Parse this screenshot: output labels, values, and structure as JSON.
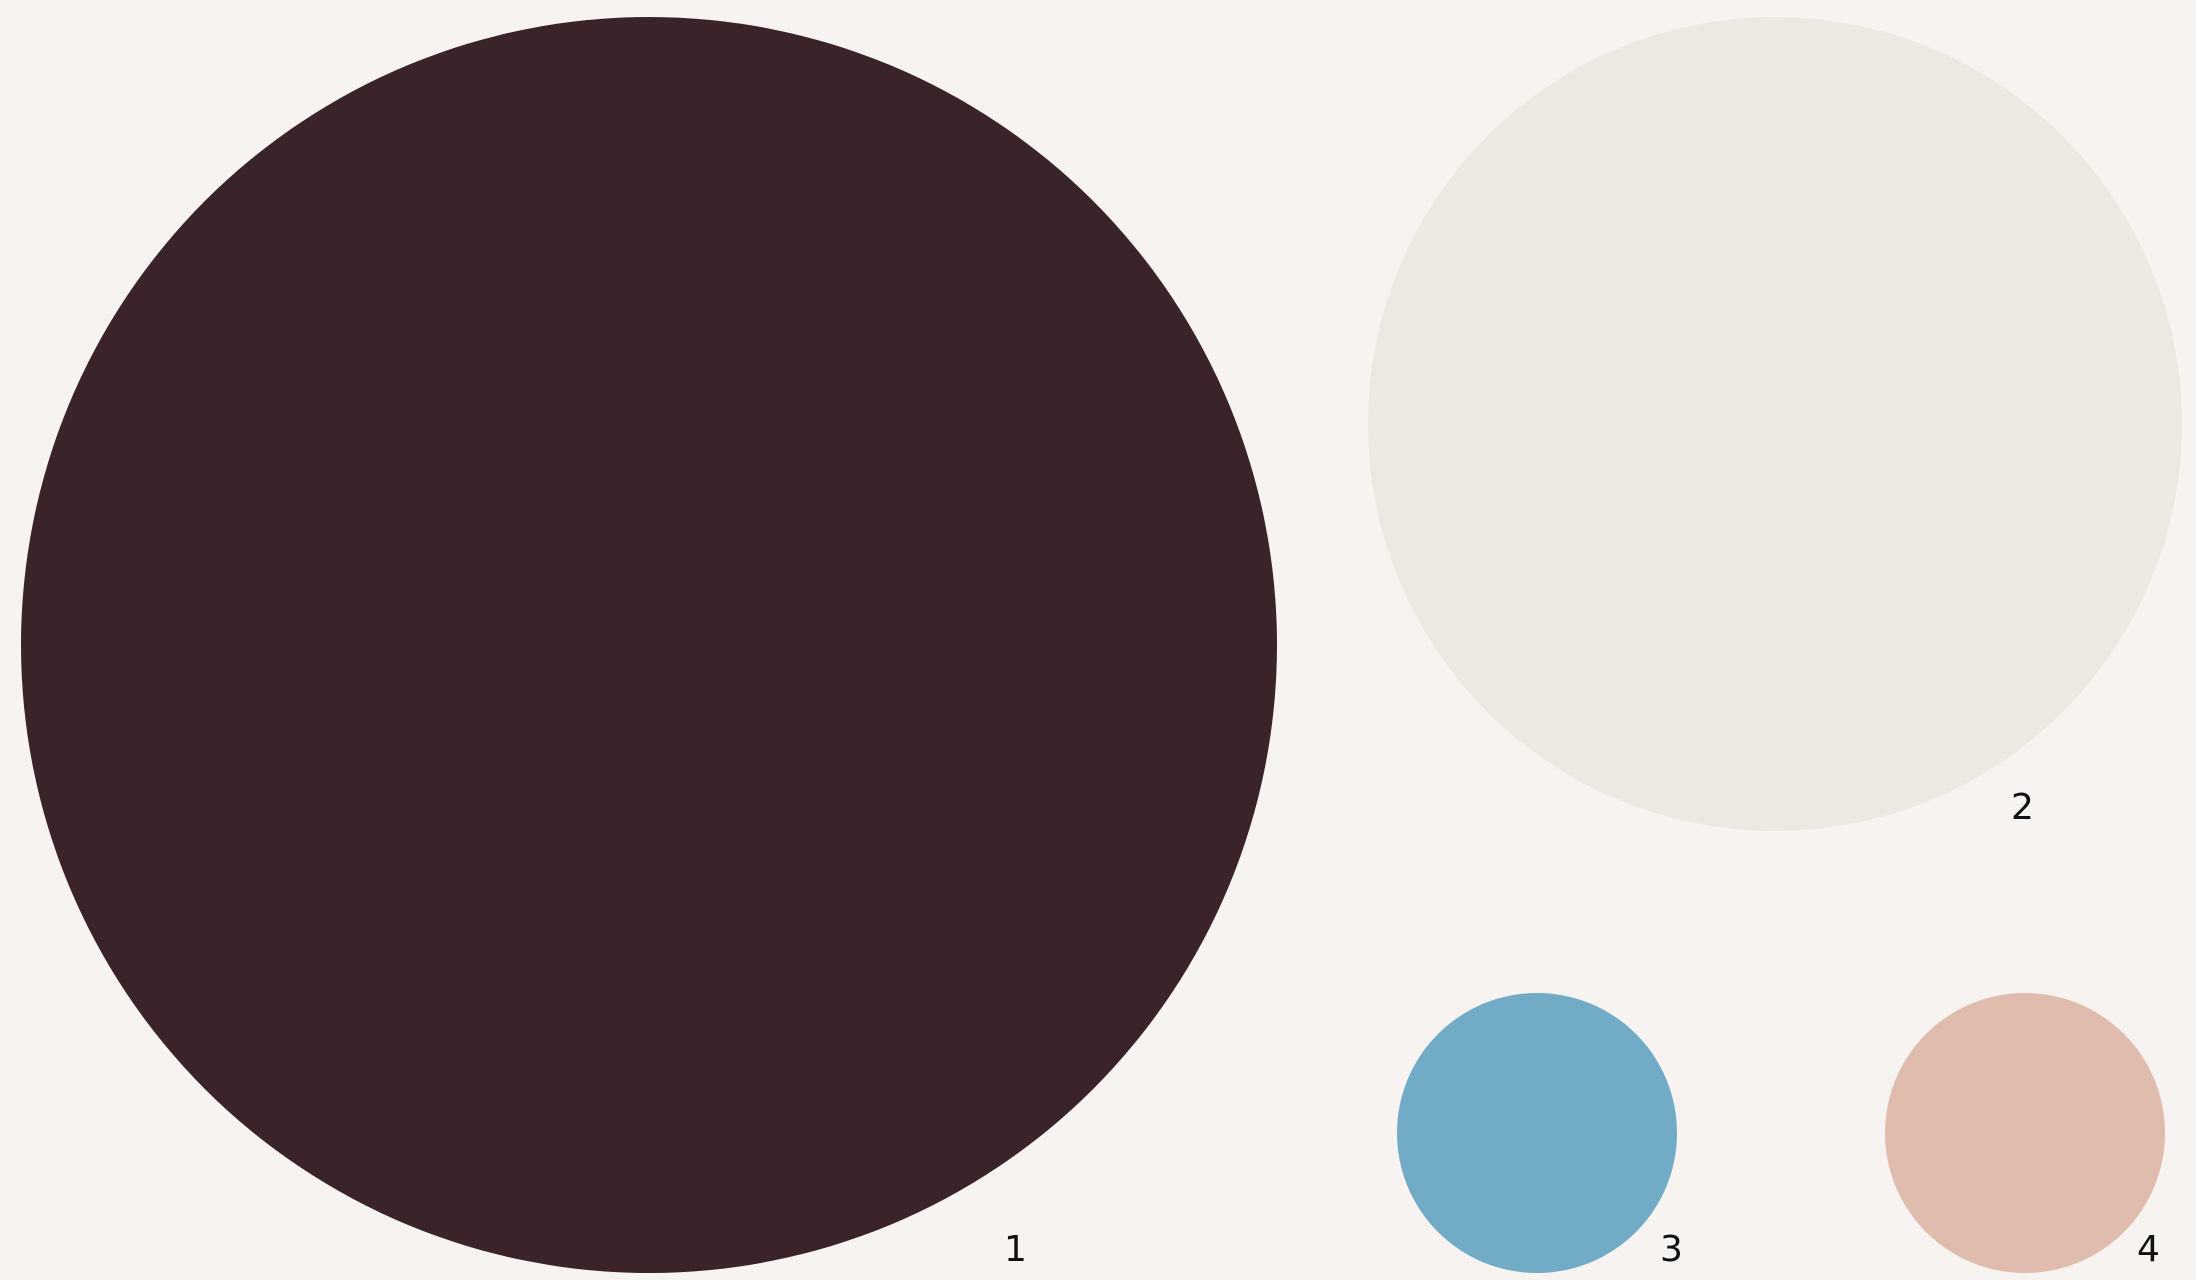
{
  "swatches": [
    {
      "label": "1",
      "color": "#3a2429"
    },
    {
      "label": "2",
      "color": "#ede8e2"
    },
    {
      "label": "3",
      "color": "#71abc6"
    },
    {
      "label": "4",
      "color": "#dfbcae"
    }
  ]
}
